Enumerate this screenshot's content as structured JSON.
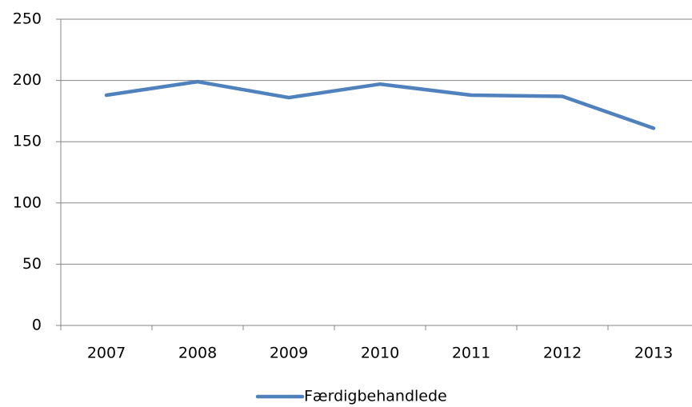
{
  "chart_data": {
    "type": "line",
    "categories": [
      "2007",
      "2008",
      "2009",
      "2010",
      "2011",
      "2012",
      "2013"
    ],
    "series": [
      {
        "name": "Færdigbehandlede",
        "color": "#4f81bd",
        "values": [
          188,
          199,
          186,
          197,
          188,
          187,
          161
        ]
      }
    ],
    "ylim": [
      0,
      250
    ],
    "yticks": [
      0,
      50,
      100,
      150,
      200,
      250
    ],
    "grid": true,
    "legend": "bottom"
  }
}
